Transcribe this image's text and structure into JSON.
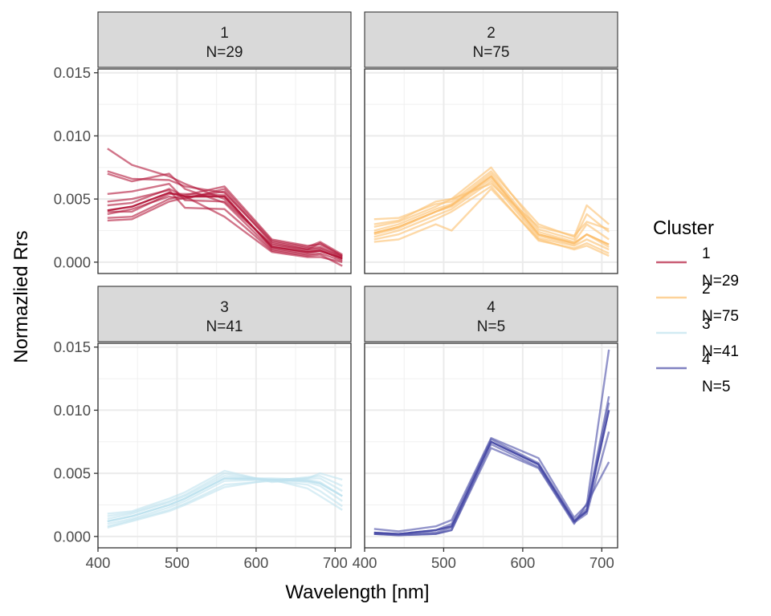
{
  "chart_data": {
    "type": "line",
    "xlabel": "Wavelength [nm]",
    "ylabel": "Normazlied Rrs",
    "x_ticks": [
      400,
      500,
      600,
      700
    ],
    "y_ticks": [
      "0.000",
      "0.005",
      "0.010",
      "0.015"
    ],
    "xlim": [
      400,
      720
    ],
    "ylim": [
      -0.0009,
      0.0153
    ],
    "grid": true,
    "legend": {
      "title": "Cluster",
      "placement": "right",
      "items": [
        {
          "line1": "1",
          "line2": "N=29",
          "color": "#b2183a"
        },
        {
          "line1": "2",
          "line2": "N=75",
          "color": "#fcbf6e"
        },
        {
          "line1": "3",
          "line2": "N=41",
          "color": "#bfe2ee"
        },
        {
          "line1": "4",
          "line2": "N=5",
          "color": "#4a4ca6"
        }
      ]
    },
    "wavelengths": [
      412,
      443,
      490,
      510,
      560,
      620,
      665,
      681,
      709
    ],
    "panels": [
      {
        "cluster": "1",
        "n_label": "N=29",
        "color": "#b2183a",
        "mean": [
          0.0041,
          0.0044,
          0.0055,
          0.0052,
          0.0052,
          0.0012,
          0.0008,
          0.0009,
          0.0003
        ],
        "series": [
          [
            0.009,
            0.0077,
            0.0068,
            0.0062,
            0.005,
            0.0013,
            0.0009,
            0.001,
            0.0002
          ],
          [
            0.0072,
            0.0066,
            0.0065,
            0.006,
            0.0055,
            0.0016,
            0.0011,
            0.0012,
            0.0004
          ],
          [
            0.007,
            0.0064,
            0.007,
            0.0058,
            0.0047,
            0.001,
            0.0006,
            0.0007,
            0.0001
          ],
          [
            0.0054,
            0.0056,
            0.0062,
            0.0049,
            0.0048,
            0.0014,
            0.001,
            0.0015,
            0.0005
          ],
          [
            0.0048,
            0.005,
            0.0057,
            0.0043,
            0.0042,
            0.0009,
            0.0005,
            0.0006,
            -0.0003
          ],
          [
            0.0038,
            0.0042,
            0.0052,
            0.005,
            0.0058,
            0.0017,
            0.0012,
            0.0016,
            0.0006
          ],
          [
            0.0035,
            0.0036,
            0.005,
            0.0053,
            0.006,
            0.0018,
            0.0013,
            0.0014,
            0.0005
          ],
          [
            0.0033,
            0.0034,
            0.0048,
            0.0051,
            0.0056,
            0.0015,
            0.001,
            0.0011,
            0.0004
          ],
          [
            0.0045,
            0.0047,
            0.0058,
            0.0052,
            0.0036,
            0.0008,
            0.0004,
            0.0004,
            0.0
          ],
          [
            0.004,
            0.004,
            0.0054,
            0.0054,
            0.0053,
            0.0011,
            0.0007,
            0.0009,
            0.0003
          ]
        ]
      },
      {
        "cluster": "2",
        "n_label": "N=75",
        "color": "#fcbf6e",
        "mean": [
          0.0023,
          0.0028,
          0.004,
          0.0045,
          0.0068,
          0.0022,
          0.0015,
          0.0022,
          0.0014
        ],
        "series": [
          [
            0.0034,
            0.0035,
            0.0046,
            0.0048,
            0.0072,
            0.003,
            0.002,
            0.0045,
            0.003
          ],
          [
            0.0028,
            0.0032,
            0.0044,
            0.005,
            0.0075,
            0.0026,
            0.0018,
            0.0038,
            0.0024
          ],
          [
            0.0025,
            0.003,
            0.0042,
            0.0046,
            0.007,
            0.0024,
            0.0016,
            0.003,
            0.0018
          ],
          [
            0.0022,
            0.0027,
            0.004,
            0.0044,
            0.0066,
            0.0021,
            0.0014,
            0.0022,
            0.0012
          ],
          [
            0.002,
            0.0025,
            0.0037,
            0.0042,
            0.0064,
            0.0019,
            0.0013,
            0.0018,
            0.001
          ],
          [
            0.0018,
            0.0022,
            0.0034,
            0.004,
            0.006,
            0.0017,
            0.0011,
            0.0015,
            0.0007
          ],
          [
            0.0016,
            0.0018,
            0.003,
            0.0025,
            0.0058,
            0.0018,
            0.001,
            0.0013,
            0.0005
          ],
          [
            0.003,
            0.0033,
            0.0048,
            0.005,
            0.0062,
            0.0028,
            0.0021,
            0.0032,
            0.0026
          ]
        ]
      },
      {
        "cluster": "3",
        "n_label": "N=41",
        "color": "#bfe2ee",
        "mean": [
          0.0012,
          0.0016,
          0.0025,
          0.003,
          0.0046,
          0.0045,
          0.0044,
          0.0042,
          0.0032
        ],
        "series": [
          [
            0.0018,
            0.002,
            0.003,
            0.0035,
            0.0052,
            0.0043,
            0.0046,
            0.005,
            0.0045
          ],
          [
            0.0016,
            0.0019,
            0.0028,
            0.0033,
            0.005,
            0.0044,
            0.0047,
            0.0048,
            0.004
          ],
          [
            0.0014,
            0.0018,
            0.0027,
            0.0032,
            0.0048,
            0.0045,
            0.0046,
            0.0046,
            0.0036
          ],
          [
            0.0012,
            0.0016,
            0.0025,
            0.003,
            0.0046,
            0.0046,
            0.0045,
            0.0043,
            0.0032
          ],
          [
            0.001,
            0.0014,
            0.0023,
            0.0028,
            0.0044,
            0.0045,
            0.0043,
            0.004,
            0.0028
          ],
          [
            0.0008,
            0.0013,
            0.0021,
            0.0026,
            0.0041,
            0.0044,
            0.0041,
            0.0036,
            0.0024
          ],
          [
            0.0007,
            0.0012,
            0.002,
            0.0025,
            0.0039,
            0.0045,
            0.0038,
            0.0032,
            0.0021
          ]
        ]
      },
      {
        "cluster": "4",
        "n_label": "N=5",
        "color": "#4a4ca6",
        "mean": [
          0.0003,
          0.0002,
          0.0005,
          0.0008,
          0.0075,
          0.0057,
          0.0012,
          0.002,
          0.01
        ],
        "series": [
          [
            0.0006,
            0.0004,
            0.0008,
            0.0013,
            0.0078,
            0.0062,
            0.0015,
            0.0025,
            0.0148
          ],
          [
            0.0003,
            0.0002,
            0.0005,
            0.001,
            0.0077,
            0.0058,
            0.0013,
            0.0022,
            0.0111
          ],
          [
            0.0002,
            0.0002,
            0.0003,
            0.0007,
            0.0075,
            0.0057,
            0.0012,
            0.002,
            0.0106
          ],
          [
            0.0002,
            0.0001,
            0.0002,
            0.0005,
            0.0073,
            0.0055,
            0.0011,
            0.0018,
            0.0083
          ],
          [
            0.0002,
            0.0001,
            0.0002,
            0.0005,
            0.007,
            0.0054,
            0.001,
            0.0026,
            0.0059
          ]
        ]
      }
    ]
  }
}
